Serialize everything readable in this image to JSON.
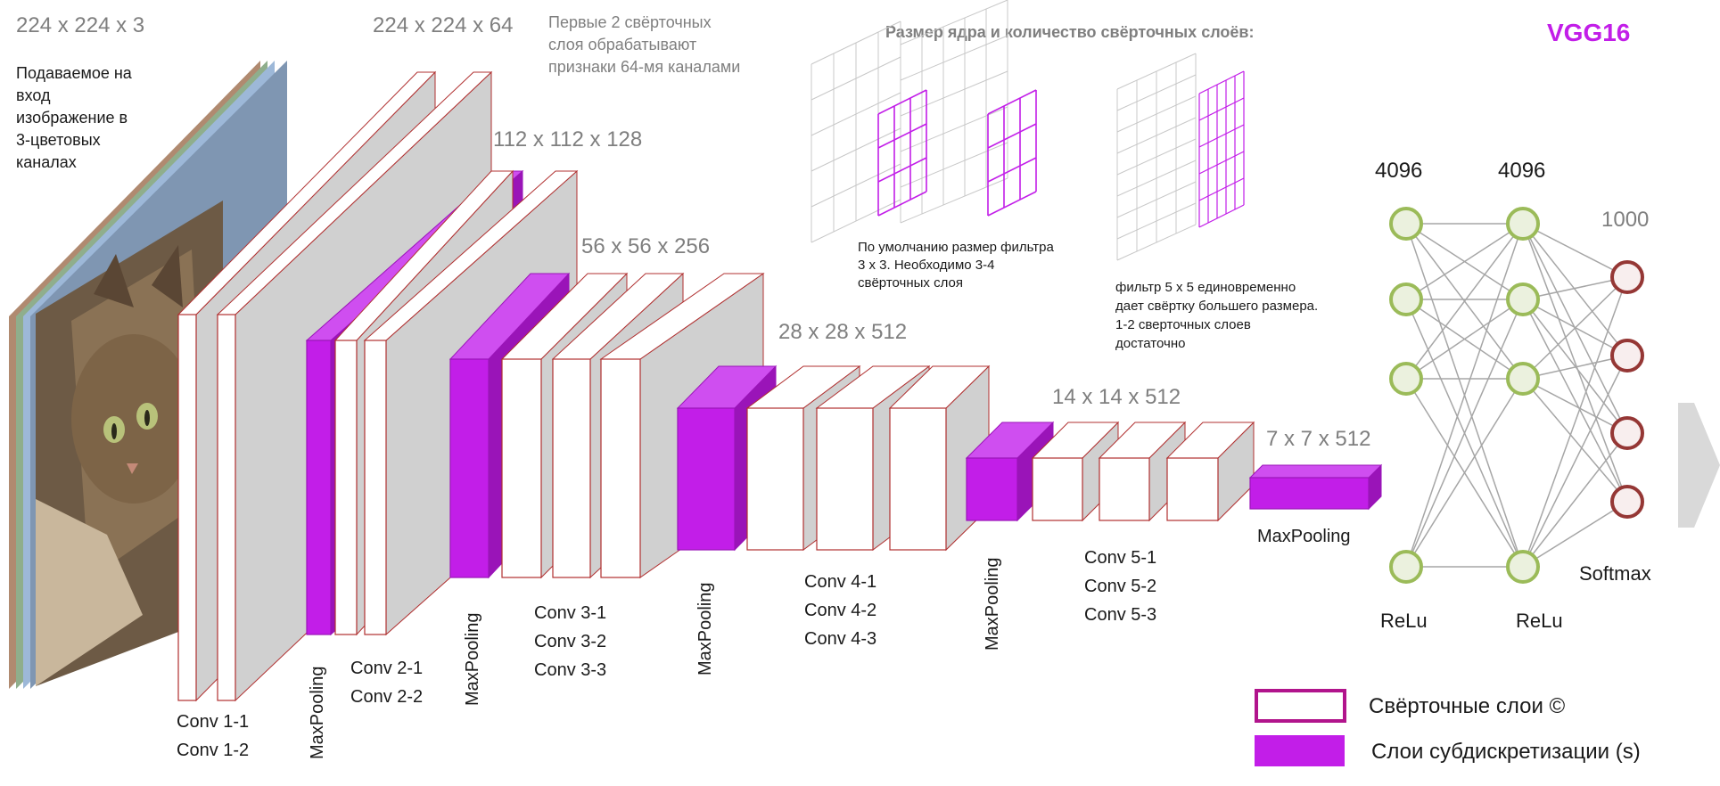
{
  "title": "VGG16",
  "input": {
    "dims": "224 x 224 x 3",
    "description": [
      "Подаваемое на",
      "вход",
      "изображение в",
      "3-цветовых",
      "каналах"
    ]
  },
  "blocks": {
    "b1": {
      "dims": "224 x 224 x 64",
      "conv_labels": [
        "Conv 1-1",
        "Conv 1-2"
      ]
    },
    "b1_note": [
      "Первые 2 свёрточных",
      "слоя обрабатывают",
      "признаки 64-мя каналами"
    ],
    "b2": {
      "dims": "112 x 112 x 128",
      "pool_label": "MaxPooling",
      "conv_labels": [
        "Conv 2-1",
        "Conv 2-2"
      ]
    },
    "b3": {
      "dims": "56 x 56 x 256",
      "pool_label": "MaxPooling",
      "conv_labels": [
        "Conv 3-1",
        "Conv 3-2",
        "Conv 3-3"
      ]
    },
    "b4": {
      "dims": "28 x 28 x 512",
      "pool_label": "MaxPooling",
      "conv_labels": [
        "Conv 4-1",
        "Conv 4-2",
        "Conv 4-3"
      ]
    },
    "b5": {
      "dims": "14 x 14 x 512",
      "pool_label": "MaxPooling",
      "conv_labels": [
        "Conv 5-1",
        "Conv 5-2",
        "Conv 5-3"
      ]
    },
    "final_pool": {
      "dims": "7 x 7 x 512",
      "label": "MaxPooling"
    }
  },
  "kernel_panel": {
    "heading": "Размер ядра и количество свёрточных слоёв:",
    "note_3x3": [
      "По умолчанию размер фильтра",
      "3 х 3. Необходимо 3-4",
      "свёрточных слоя"
    ],
    "note_5x5": [
      "фильтр 5 х 5 единовременно",
      "дает свёртку большего размера.",
      "1-2 сверточных слоев",
      "достаточно"
    ]
  },
  "dense": {
    "fc1": {
      "size": "4096",
      "activation": "ReLu"
    },
    "fc2": {
      "size": "4096",
      "activation": "ReLu"
    },
    "output": {
      "size": "1000",
      "activation": "Softmax"
    }
  },
  "legend": {
    "conv": "Свёрточные слои ©",
    "pool": "Слои субдискретизации (s)"
  },
  "colors": {
    "accent": "#c21ee8",
    "accent_top": "#cf4ef0",
    "accent_side": "#9a14b8",
    "layer_outline": "#b03030",
    "layer_side": "#d0d0d0",
    "node_green": "#9bbb59",
    "node_red": "#953735",
    "text_gray": "#7f7f7f"
  }
}
